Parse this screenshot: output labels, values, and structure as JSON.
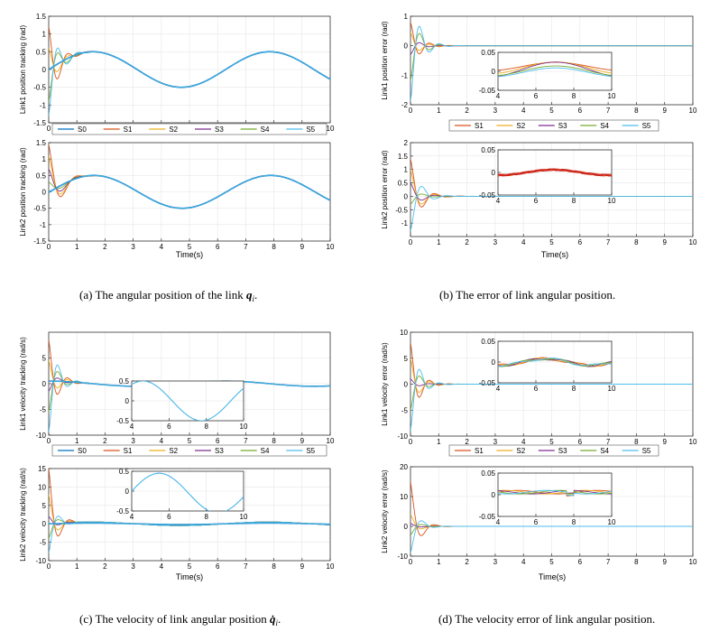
{
  "colors": [
    "#0072BD",
    "#D95319",
    "#EDB120",
    "#7E2F8E",
    "#77AC30",
    "#4DBEEE"
  ],
  "time_label": "Time(s)",
  "captions": {
    "a": "(a)  The angular position of the link ",
    "a_sym": "q",
    "a_sub": "i",
    "b": "(b)  The error of link angular position.",
    "c": "(c)  The velocity of link angular position ",
    "c_sym": "q̇",
    "c_sub": "i",
    "d": "(d)  The velocity error of link angular position."
  },
  "legends": {
    "tracking": [
      "S0",
      "S1",
      "S2",
      "S3",
      "S4",
      "S5"
    ],
    "error": [
      "S1",
      "S2",
      "S3",
      "S4",
      "S5"
    ]
  },
  "chart_data": [
    {
      "id": "a1",
      "type": "line",
      "ylabel": "Link1 position tracking (rad)",
      "xlim": [
        0,
        10
      ],
      "ylim": [
        -1.5,
        1.5
      ],
      "xticks": [
        "0",
        "1",
        "2",
        "3",
        "4",
        "5",
        "6",
        "7",
        "8",
        "9",
        "10"
      ],
      "yticks": [
        "-1.5",
        "-1",
        "-0.5",
        "0",
        "0.5",
        "1",
        "1.5"
      ],
      "series": [
        {
          "name": "S0",
          "x": [
            0,
            0.5,
            1,
            1.5,
            2,
            2.5,
            3,
            3.5,
            4,
            4.5,
            5,
            5.5,
            6,
            6.5,
            7,
            7.5,
            8,
            8.5,
            9,
            9.5,
            10
          ],
          "values": [
            0,
            0.24,
            0.42,
            0.5,
            0.46,
            0.31,
            0.08,
            -0.17,
            -0.38,
            -0.5,
            -0.5,
            -0.38,
            -0.17,
            0.08,
            0.31,
            0.46,
            0.5,
            0.42,
            0.24,
            0,
            -0.24
          ]
        }
      ],
      "note": "S1–S5 start from 1.2, 0.6, 0, -0.9, -1.3 and converge to S0 within ~1.5 s"
    },
    {
      "id": "a2",
      "type": "line",
      "ylabel": "Link2 position tracking (rad)",
      "xlim": [
        0,
        10
      ],
      "ylim": [
        -1.5,
        1.5
      ],
      "xticks": [
        "0",
        "1",
        "2",
        "3",
        "4",
        "5",
        "6",
        "7",
        "8",
        "9",
        "10"
      ],
      "yticks": [
        "-1.5",
        "-1",
        "-0.5",
        "0",
        "0.5",
        "1",
        "1.5"
      ],
      "series": [
        {
          "name": "S0",
          "x": [
            0,
            1,
            1.6,
            2,
            3,
            4,
            4.7,
            5,
            6,
            7,
            7.8,
            8,
            9,
            10
          ],
          "values": [
            0,
            0.5,
            0.5,
            0.46,
            0.07,
            -0.38,
            -0.5,
            -0.48,
            -0.14,
            0.32,
            0.5,
            0.49,
            0.21,
            -0.27
          ]
        }
      ],
      "note": "S1–S5 start from 1.4, 1.1, 0.7, 0.3, 0 and converge to S0 within ~1.5 s"
    },
    {
      "id": "b1",
      "type": "line",
      "ylabel": "Link1 position  error (rad)",
      "xlim": [
        0,
        10
      ],
      "ylim": [
        -2,
        1
      ],
      "xticks": [
        "0",
        "1",
        "2",
        "3",
        "4",
        "5",
        "6",
        "7",
        "8",
        "9",
        "10"
      ],
      "yticks": [
        "-2",
        "-1",
        "0",
        "1"
      ],
      "inset": {
        "xlim": [
          4,
          10
        ],
        "ylim": [
          -0.05,
          0.05
        ],
        "xticks": [
          "4",
          "6",
          "8",
          "10"
        ],
        "yticks": [
          "-0.05",
          "0",
          "0.05"
        ]
      }
    },
    {
      "id": "b2",
      "type": "line",
      "ylabel": "Link2 position  error (rad)",
      "xlim": [
        0,
        10
      ],
      "ylim": [
        -1.5,
        2
      ],
      "xticks": [
        "0",
        "1",
        "2",
        "3",
        "4",
        "5",
        "6",
        "7",
        "8",
        "9",
        "10"
      ],
      "yticks": [
        "-1",
        "-0.5",
        "0",
        "0.5",
        "1",
        "1.5",
        "2"
      ],
      "inset": {
        "xlim": [
          4,
          10
        ],
        "ylim": [
          -0.05,
          0.05
        ],
        "xticks": [
          "4",
          "6",
          "8",
          "10"
        ],
        "yticks": [
          "-0.05",
          "0",
          "0.05"
        ]
      }
    },
    {
      "id": "c1",
      "type": "line",
      "ylabel": "Link1 velocity tracking (rad/s)",
      "xlim": [
        0,
        10
      ],
      "ylim": [
        -10,
        10
      ],
      "xticks": [
        "0",
        "1",
        "2",
        "3",
        "4",
        "5",
        "6",
        "7",
        "8",
        "9",
        "10"
      ],
      "yticks": [
        "-10",
        "-5",
        "0",
        "5"
      ],
      "inset": {
        "xlim": [
          4,
          10
        ],
        "ylim": [
          -0.5,
          0.5
        ],
        "xticks": [
          "4",
          "6",
          "8",
          "10"
        ],
        "yticks": [
          "-0.5",
          "0",
          "0.5"
        ]
      }
    },
    {
      "id": "c2",
      "type": "line",
      "ylabel": "Link2 velocity tracking (rad/s)",
      "xlim": [
        0,
        10
      ],
      "ylim": [
        -10,
        15
      ],
      "xticks": [
        "0",
        "1",
        "2",
        "3",
        "4",
        "5",
        "6",
        "7",
        "8",
        "9",
        "10"
      ],
      "yticks": [
        "-10",
        "-5",
        "0",
        "5",
        "10",
        "15"
      ],
      "inset": {
        "xlim": [
          4,
          10
        ],
        "ylim": [
          -0.5,
          0.5
        ],
        "xticks": [
          "4",
          "6",
          "8",
          "10"
        ],
        "yticks": [
          "-0.5",
          "0",
          "0.5"
        ]
      }
    },
    {
      "id": "d1",
      "type": "line",
      "ylabel": "Link1 velocity  error (rad/s)",
      "xlim": [
        0,
        10
      ],
      "ylim": [
        -10,
        10
      ],
      "xticks": [
        "0",
        "1",
        "2",
        "3",
        "4",
        "5",
        "6",
        "7",
        "8",
        "9",
        "10"
      ],
      "yticks": [
        "-10",
        "-5",
        "0",
        "5",
        "10"
      ],
      "inset": {
        "xlim": [
          4,
          10
        ],
        "ylim": [
          -0.05,
          0.05
        ],
        "xticks": [
          "4",
          "6",
          "8",
          "10"
        ],
        "yticks": [
          "-0.05",
          "0",
          "0.05"
        ]
      }
    },
    {
      "id": "d2",
      "type": "line",
      "ylabel": "Link2 velocity  error (rad/s)",
      "xlim": [
        0,
        10
      ],
      "ylim": [
        -10,
        20
      ],
      "xticks": [
        "0",
        "1",
        "2",
        "3",
        "4",
        "5",
        "6",
        "7",
        "8",
        "9",
        "10"
      ],
      "yticks": [
        "-10",
        "0",
        "10",
        "20"
      ],
      "inset": {
        "xlim": [
          4,
          10
        ],
        "ylim": [
          -0.05,
          0.05
        ],
        "xticks": [
          "4",
          "6",
          "8",
          "10"
        ],
        "yticks": [
          "-0.05",
          "0",
          "0.05"
        ]
      }
    }
  ]
}
